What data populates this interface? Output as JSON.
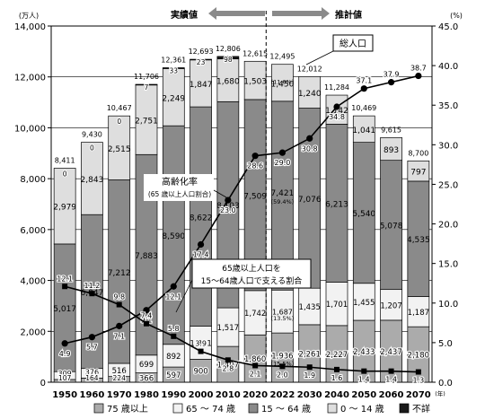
{
  "chart_data": {
    "type": "bar",
    "bar_mode": "stacked",
    "categories": [
      "1950",
      "1960",
      "1970",
      "1980",
      "1990",
      "2000",
      "2010",
      "2020",
      "2022",
      "2030",
      "2040",
      "2050",
      "2060",
      "2070"
    ],
    "left_axis": {
      "unit_label": "(万人)",
      "ylim": [
        0,
        14000
      ],
      "ticks": [
        "0",
        "2,000",
        "4,000",
        "6,000",
        "8,000",
        "10,000",
        "12,000",
        "14,000"
      ]
    },
    "right_axis": {
      "unit_label": "(%)",
      "ylim": [
        0,
        45
      ],
      "ticks": [
        "0.0",
        "5.0",
        "10.0",
        "15.0",
        "20.0",
        "25.0",
        "30.0",
        "35.0",
        "40.0",
        "45.0"
      ]
    },
    "x_unit": "(年)",
    "series": [
      {
        "name": "0～14 歳",
        "color": "#dedede",
        "values": [
          2979,
          2843,
          2515,
          2751,
          2249,
          1847,
          1680,
          1503,
          1450,
          1240,
          1142,
          1041,
          893,
          797
        ],
        "labels": [
          "2,979",
          "2,843",
          "2,515",
          "2,751",
          "2,249",
          "1,847",
          "1,680",
          "1,503",
          "1,450",
          "1,240",
          "1,142",
          "1,041",
          "893",
          "797"
        ]
      },
      {
        "name": "15～64 歳",
        "color": "#8a8a8a",
        "values": [
          5017,
          6047,
          7212,
          7883,
          8590,
          8622,
          8103,
          7509,
          7421,
          7076,
          6213,
          5540,
          5078,
          4535
        ],
        "labels": [
          "5,017",
          "6,047",
          "7,212",
          "7,883",
          "8,590",
          "8,622",
          "8,103",
          "7,509",
          "7,421",
          "7,076",
          "6,213",
          "5,540",
          "5,078",
          "4,535"
        ]
      },
      {
        "name": "65～74 歳",
        "color": "#f2f2f2",
        "values": [
          309,
          376,
          516,
          699,
          892,
          1301,
          1517,
          1742,
          1687,
          1435,
          1701,
          1455,
          1207,
          1187
        ],
        "labels": [
          "309",
          "376",
          "516",
          "699",
          "892",
          "1,301",
          "1,517",
          "1,742",
          "1,687",
          "1,435",
          "1,701",
          "1,455",
          "1,207",
          "1,187"
        ]
      },
      {
        "name": "75 歳以上",
        "color": "#ababab",
        "values": [
          107,
          164,
          224,
          366,
          597,
          900,
          1407,
          1860,
          1936,
          2261,
          2227,
          2433,
          2437,
          2180
        ],
        "labels": [
          "107",
          "164",
          "224",
          "366",
          "597",
          "900",
          "1,407",
          "1,860",
          "1,936",
          "2,261",
          "2,227",
          "2,433",
          "2,437",
          "2,180"
        ]
      },
      {
        "name": "不詳",
        "color": "#1a1a1a",
        "values": [
          0,
          0,
          0,
          7,
          33,
          23,
          98,
          0,
          0,
          0,
          0,
          0,
          0,
          0
        ],
        "labels": [
          "0",
          "0",
          "0",
          "7",
          "33",
          "23",
          "98",
          "",
          "",
          "",
          "",
          "",
          "",
          ""
        ]
      }
    ],
    "totals": [
      8411,
      9430,
      10467,
      11706,
      12361,
      12693,
      12806,
      12615,
      12495,
      12012,
      11284,
      10469,
      9615,
      8700
    ],
    "total_labels": [
      "8,411",
      "9,430",
      "10,467",
      "11,706",
      "12,361",
      "12,693",
      "12,806",
      "12,615",
      "12,495",
      "12,012",
      "11,284",
      "10,469",
      "9,615",
      "8,700"
    ],
    "percent_2022": {
      "prime": "(59.4%)",
      "young_old": "(13.5%)",
      "old_old": "(15.5%)",
      "child": "(11.6%)"
    },
    "lines": [
      {
        "name": "高齢化率",
        "values": [
          4.9,
          5.7,
          7.1,
          9.1,
          12.1,
          17.4,
          23.0,
          28.6,
          29.0,
          30.8,
          34.8,
          37.1,
          37.9,
          38.7
        ],
        "labels": [
          "4.9",
          "5.7",
          "7.1",
          "9.1",
          "12.1",
          "17.4",
          "23.0",
          "28.6",
          "29.0",
          "30.8",
          "34.8",
          "37.1",
          "37.9",
          "38.7"
        ]
      },
      {
        "name": "65歳以上人口を15～64歳人口で支える割合",
        "values": [
          12.1,
          11.2,
          9.8,
          7.4,
          5.8,
          3.9,
          2.8,
          2.1,
          2.0,
          1.9,
          1.6,
          1.4,
          1.4,
          1.3
        ],
        "labels": [
          "12.1",
          "11.2",
          "9.8",
          "7.4",
          "5.8",
          "3.9",
          "2.8",
          "2.1",
          "2.0",
          "1.9",
          "1.6",
          "1.4",
          "1.4",
          "1.3"
        ]
      }
    ],
    "annotations": {
      "actual": "実績値",
      "projected": "推計値",
      "total_population": "総人口",
      "aging_rate": "高齢化率",
      "aging_rate_note": "(65 歳以上人口割合)",
      "support_line1": "65歳以上人口を",
      "support_line2": "15～64歳人口で支える割合"
    },
    "legend": {
      "placement": "bottom",
      "items": [
        {
          "name": "75 歳以上",
          "color": "#ababab"
        },
        {
          "name": "65 ～ 74 歳",
          "color": "#f2f2f2"
        },
        {
          "name": "15 ～ 64 歳",
          "color": "#8a8a8a"
        },
        {
          "name": "0 ～ 14 歳",
          "color": "#dedede"
        },
        {
          "name": "不詳",
          "color": "#1a1a1a"
        }
      ]
    },
    "grid": true
  }
}
